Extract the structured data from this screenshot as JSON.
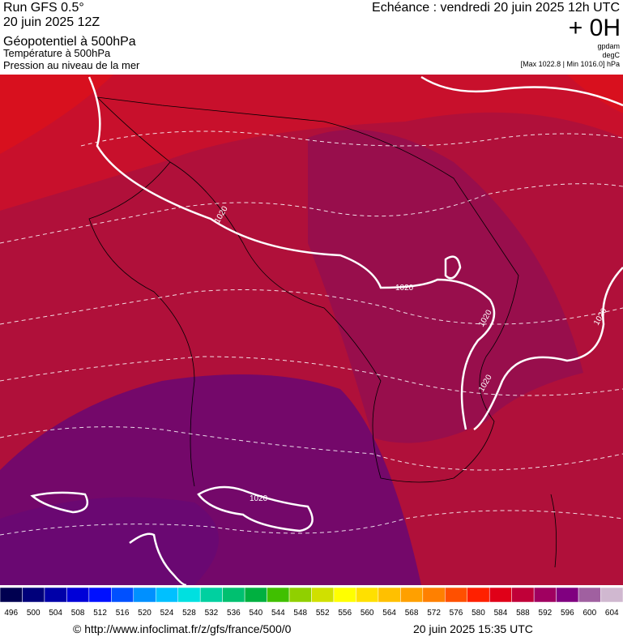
{
  "header": {
    "run": "Run GFS 0.5°",
    "date": "20 juin 2025 12Z",
    "title": "Géopotentiel à 500hPa",
    "line2": "Température à 500hPa",
    "line3": "Pression au niveau de la mer",
    "echeance": "Echéance : vendredi 20 juin 2025 12h UTC",
    "offset": "+ 0H",
    "unit1": "gpdam",
    "unit2": "degC",
    "range": "[Max 1022.8 | Min 1016.0] hPa"
  },
  "map": {
    "isobar_labels": [
      "1020",
      "1020",
      "1020",
      "1020",
      "1020",
      "1020"
    ]
  },
  "colorbar": {
    "labels": [
      496,
      500,
      504,
      508,
      512,
      516,
      520,
      524,
      528,
      532,
      536,
      540,
      544,
      548,
      552,
      556,
      560,
      564,
      568,
      572,
      576,
      580,
      584,
      588,
      592,
      596,
      600,
      604
    ],
    "colors": [
      "#000050",
      "#00007a",
      "#0000a8",
      "#0000d8",
      "#0010ff",
      "#0050ff",
      "#0090ff",
      "#00c0ff",
      "#00e0e0",
      "#00d0a0",
      "#00c070",
      "#00b040",
      "#40c000",
      "#90d000",
      "#d0e000",
      "#ffff00",
      "#ffe000",
      "#ffc000",
      "#ffa000",
      "#ff8000",
      "#ff5000",
      "#ff2000",
      "#e00018",
      "#c00038",
      "#a00060",
      "#800080",
      "#a060a0",
      "#d0b8d0"
    ]
  },
  "footer": {
    "url": "© http://www.infoclimat.fr/z/gfs/france/500/0",
    "timestamp": "20 juin 2025 15:35 UTC"
  }
}
